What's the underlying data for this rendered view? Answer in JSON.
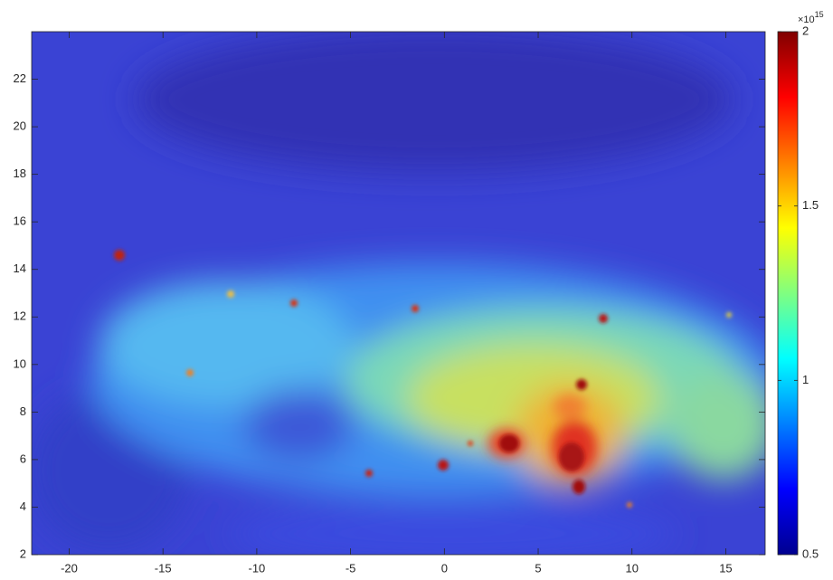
{
  "chart_data": {
    "type": "heatmap",
    "xlim": [
      -22,
      17.1
    ],
    "ylim": [
      2,
      24
    ],
    "xticks": [
      -20,
      -15,
      -10,
      -5,
      0,
      5,
      10,
      15
    ],
    "yticks": [
      2,
      4,
      6,
      8,
      10,
      12,
      14,
      16,
      18,
      20,
      22
    ],
    "colorbar": {
      "clim": [
        0.5,
        2
      ],
      "ticks": [
        0.5,
        1,
        1.5,
        2
      ],
      "exponent_base": "×10",
      "exponent": "15",
      "colormap": "jet"
    }
  }
}
